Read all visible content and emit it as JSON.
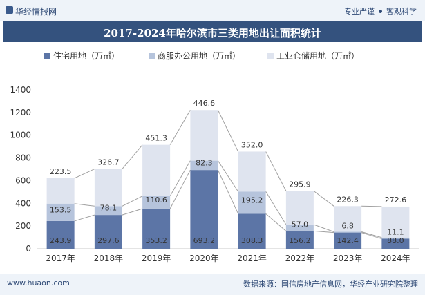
{
  "header": {
    "brand": "华经情报网",
    "tags": [
      "专业严谨",
      "客观科学"
    ],
    "title": "2017-2024年哈尔滨市三类用地出让面积统计"
  },
  "footer": {
    "site": "www.huaon.com",
    "source": "数据来源：国信房地产信息网，华经产业研究院整理"
  },
  "colors": {
    "residential": "#5c75a6",
    "commercial": "#b6c4dc",
    "industrial": "#dfe4ef",
    "line": "#a0a0a0"
  },
  "chart_data": {
    "type": "bar",
    "stacked": true,
    "categories": [
      "2017年",
      "2018年",
      "2019年",
      "2020年",
      "2021年",
      "2022年",
      "2023年",
      "2024年"
    ],
    "series": [
      {
        "name": "住宅用地（万㎡）",
        "values": [
          243.9,
          297.6,
          353.2,
          693.2,
          308.3,
          156.2,
          142.4,
          88.0
        ]
      },
      {
        "name": "商服办公用地（万㎡）",
        "values": [
          153.5,
          78.1,
          110.6,
          82.3,
          195.2,
          57.0,
          6.8,
          11.1
        ]
      },
      {
        "name": "工业仓储用地（万㎡）",
        "values": [
          223.5,
          326.7,
          451.3,
          446.6,
          352.0,
          295.9,
          226.3,
          272.6
        ]
      }
    ],
    "value_labels": [
      [
        "243.9",
        "297.6",
        "353.2",
        "693.2",
        "308.3",
        "156.2",
        "142.4",
        "88.0"
      ],
      [
        "153.5",
        "78.1",
        "110.6",
        "82.3",
        "195.2",
        "57.0",
        "6.8",
        "11.1"
      ],
      [
        "223.5",
        "326.7",
        "451.3",
        "446.6",
        "352.0",
        "295.9",
        "226.3",
        "272.6"
      ]
    ],
    "yticks": [
      "0",
      "200",
      "400",
      "600",
      "800",
      "1000",
      "1200",
      "1400"
    ],
    "ylim": [
      0,
      1400
    ],
    "legend_position": "top"
  }
}
